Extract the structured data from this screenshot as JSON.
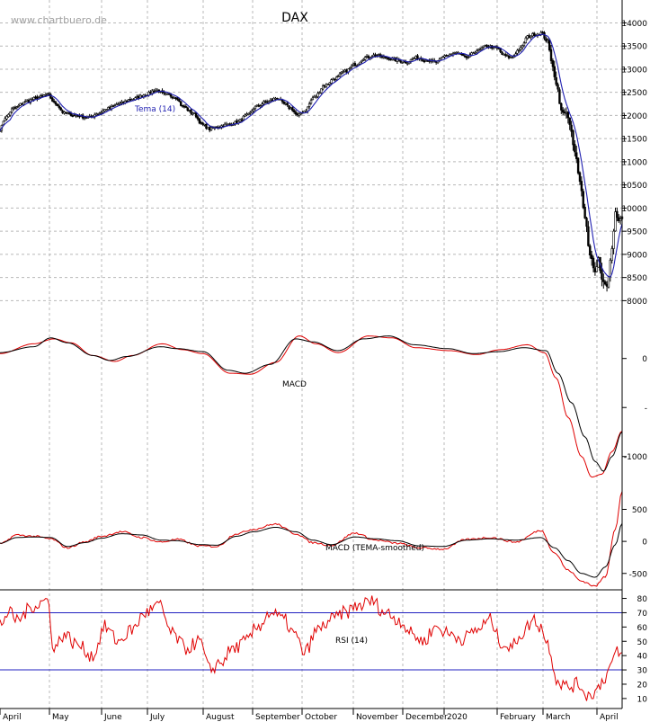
{
  "watermark": "www.chartbuero.de",
  "colors": {
    "price": "#000000",
    "tema": "#1f1fb0",
    "macd": "#000000",
    "signal": "#e00000",
    "rsi": "#e00000",
    "rsi_bands": "#2020c0",
    "grid": "#b8b8b8"
  },
  "chart_data": [
    {
      "type": "candlestick",
      "title": "DAX",
      "series": [
        {
          "name": "Tema (14)",
          "kind": "line"
        }
      ],
      "x_months": [
        "April",
        "May",
        "June",
        "July",
        "August",
        "September",
        "October",
        "November",
        "December",
        "2020",
        "February",
        "March",
        "April"
      ],
      "ylim": [
        7600,
        14300
      ],
      "yticks": [
        8000,
        8500,
        9000,
        9500,
        10000,
        10500,
        11000,
        11500,
        12000,
        12500,
        13000,
        13500,
        14000
      ],
      "close_anchors": [
        [
          0,
          11700
        ],
        [
          3,
          11950
        ],
        [
          8,
          12150
        ],
        [
          15,
          12300
        ],
        [
          22,
          12380
        ],
        [
          28,
          12450
        ],
        [
          33,
          12250
        ],
        [
          38,
          12050
        ],
        [
          45,
          12000
        ],
        [
          52,
          11950
        ],
        [
          58,
          12050
        ],
        [
          64,
          12150
        ],
        [
          70,
          12250
        ],
        [
          78,
          12350
        ],
        [
          86,
          12450
        ],
        [
          92,
          12550
        ],
        [
          98,
          12450
        ],
        [
          104,
          12400
        ],
        [
          108,
          12200
        ],
        [
          114,
          12050
        ],
        [
          120,
          11800
        ],
        [
          124,
          11700
        ],
        [
          128,
          11750
        ],
        [
          134,
          11800
        ],
        [
          140,
          11850
        ],
        [
          146,
          12000
        ],
        [
          152,
          12200
        ],
        [
          158,
          12300
        ],
        [
          164,
          12380
        ],
        [
          168,
          12250
        ],
        [
          172,
          12150
        ],
        [
          176,
          12000
        ],
        [
          180,
          12100
        ],
        [
          186,
          12400
        ],
        [
          192,
          12650
        ],
        [
          198,
          12800
        ],
        [
          204,
          12950
        ],
        [
          210,
          13100
        ],
        [
          216,
          13250
        ],
        [
          222,
          13300
        ],
        [
          228,
          13250
        ],
        [
          234,
          13200
        ],
        [
          240,
          13150
        ],
        [
          246,
          13250
        ],
        [
          252,
          13200
        ],
        [
          258,
          13150
        ],
        [
          264,
          13300
        ],
        [
          270,
          13350
        ],
        [
          276,
          13250
        ],
        [
          282,
          13400
        ],
        [
          288,
          13500
        ],
        [
          294,
          13450
        ],
        [
          298,
          13300
        ],
        [
          302,
          13250
        ],
        [
          308,
          13450
        ],
        [
          312,
          13700
        ],
        [
          316,
          13750
        ],
        [
          320,
          13780
        ],
        [
          324,
          13600
        ],
        [
          326,
          13200
        ],
        [
          329,
          12700
        ],
        [
          332,
          12100
        ],
        [
          335,
          12050
        ],
        [
          337,
          11800
        ],
        [
          340,
          11200
        ],
        [
          343,
          10600
        ],
        [
          346,
          9800
        ],
        [
          349,
          9000
        ],
        [
          352,
          8600
        ],
        [
          354,
          8900
        ],
        [
          356,
          8450
        ],
        [
          359,
          8300
        ],
        [
          362,
          9100
        ],
        [
          364,
          9900
        ],
        [
          366,
          9700
        ],
        [
          368,
          9800
        ]
      ]
    },
    {
      "type": "line",
      "series": [
        {
          "name": "MACD",
          "kind": "line"
        },
        {
          "name": "signal",
          "kind": "line"
        }
      ],
      "ylim": [
        -1250,
        300
      ],
      "yticks": [
        -1000,
        -500,
        0
      ],
      "ytick_labels": [
        "-1000",
        "-",
        "0"
      ],
      "macd_anchors": [
        [
          0,
          60
        ],
        [
          20,
          120
        ],
        [
          30,
          210
        ],
        [
          40,
          160
        ],
        [
          55,
          30
        ],
        [
          65,
          -20
        ],
        [
          75,
          20
        ],
        [
          95,
          120
        ],
        [
          105,
          100
        ],
        [
          120,
          70
        ],
        [
          135,
          -120
        ],
        [
          145,
          -150
        ],
        [
          160,
          -60
        ],
        [
          175,
          200
        ],
        [
          185,
          170
        ],
        [
          200,
          80
        ],
        [
          215,
          200
        ],
        [
          230,
          230
        ],
        [
          245,
          140
        ],
        [
          265,
          100
        ],
        [
          280,
          50
        ],
        [
          295,
          70
        ],
        [
          310,
          110
        ],
        [
          323,
          80
        ],
        [
          330,
          -150
        ],
        [
          338,
          -450
        ],
        [
          346,
          -800
        ],
        [
          352,
          -1050
        ],
        [
          357,
          -1150
        ],
        [
          362,
          -1000
        ],
        [
          368,
          -750
        ]
      ],
      "signal_anchors": [
        [
          0,
          50
        ],
        [
          20,
          150
        ],
        [
          32,
          200
        ],
        [
          42,
          160
        ],
        [
          55,
          30
        ],
        [
          68,
          -30
        ],
        [
          78,
          30
        ],
        [
          96,
          150
        ],
        [
          108,
          90
        ],
        [
          120,
          50
        ],
        [
          136,
          -150
        ],
        [
          148,
          -160
        ],
        [
          163,
          -40
        ],
        [
          177,
          230
        ],
        [
          187,
          150
        ],
        [
          200,
          60
        ],
        [
          218,
          230
        ],
        [
          232,
          210
        ],
        [
          246,
          110
        ],
        [
          266,
          80
        ],
        [
          282,
          40
        ],
        [
          296,
          90
        ],
        [
          312,
          140
        ],
        [
          322,
          60
        ],
        [
          329,
          -200
        ],
        [
          336,
          -600
        ],
        [
          344,
          -1000
        ],
        [
          350,
          -1210
        ],
        [
          356,
          -1180
        ],
        [
          362,
          -950
        ],
        [
          368,
          -740
        ]
      ],
      "label": "MACD"
    },
    {
      "type": "line",
      "series": [
        {
          "name": "MACD (TEMA-smoothed)",
          "kind": "line"
        },
        {
          "name": "signal",
          "kind": "line"
        }
      ],
      "ylim": [
        -700,
        900
      ],
      "yticks": [
        -500,
        0,
        500
      ],
      "ytick_labels": [
        "-500",
        "0",
        "500"
      ],
      "macd_anchors": [
        [
          0,
          -30
        ],
        [
          10,
          60
        ],
        [
          20,
          70
        ],
        [
          30,
          60
        ],
        [
          40,
          -80
        ],
        [
          50,
          -20
        ],
        [
          60,
          50
        ],
        [
          72,
          120
        ],
        [
          84,
          100
        ],
        [
          95,
          20
        ],
        [
          105,
          10
        ],
        [
          118,
          -50
        ],
        [
          128,
          -60
        ],
        [
          140,
          80
        ],
        [
          150,
          150
        ],
        [
          163,
          220
        ],
        [
          175,
          150
        ],
        [
          185,
          20
        ],
        [
          196,
          -50
        ],
        [
          210,
          70
        ],
        [
          222,
          40
        ],
        [
          235,
          10
        ],
        [
          248,
          -70
        ],
        [
          262,
          -80
        ],
        [
          276,
          20
        ],
        [
          290,
          40
        ],
        [
          305,
          20
        ],
        [
          320,
          60
        ],
        [
          328,
          -100
        ],
        [
          336,
          -300
        ],
        [
          344,
          -500
        ],
        [
          352,
          -560
        ],
        [
          358,
          -400
        ],
        [
          364,
          -50
        ],
        [
          368,
          280
        ]
      ],
      "signal_anchors": [
        [
          0,
          -40
        ],
        [
          10,
          100
        ],
        [
          20,
          80
        ],
        [
          30,
          40
        ],
        [
          40,
          -100
        ],
        [
          50,
          -10
        ],
        [
          60,
          80
        ],
        [
          72,
          150
        ],
        [
          84,
          60
        ],
        [
          95,
          -10
        ],
        [
          105,
          30
        ],
        [
          118,
          -70
        ],
        [
          128,
          -80
        ],
        [
          140,
          120
        ],
        [
          150,
          190
        ],
        [
          163,
          270
        ],
        [
          175,
          120
        ],
        [
          185,
          -20
        ],
        [
          196,
          -60
        ],
        [
          210,
          130
        ],
        [
          222,
          20
        ],
        [
          235,
          -30
        ],
        [
          248,
          -100
        ],
        [
          262,
          -120
        ],
        [
          276,
          30
        ],
        [
          290,
          60
        ],
        [
          305,
          -10
        ],
        [
          320,
          170
        ],
        [
          328,
          -180
        ],
        [
          336,
          -450
        ],
        [
          344,
          -620
        ],
        [
          352,
          -700
        ],
        [
          358,
          -550
        ],
        [
          364,
          200
        ],
        [
          368,
          780
        ]
      ],
      "label": "MACD (TEMA-smoothed)"
    },
    {
      "type": "line",
      "series": [
        {
          "name": "RSI (14)",
          "kind": "line"
        }
      ],
      "ylim": [
        3,
        86
      ],
      "yticks": [
        10,
        20,
        30,
        40,
        50,
        60,
        70,
        80
      ],
      "bands": [
        30,
        70
      ],
      "label": "RSI (14)",
      "rsi_anchors": [
        [
          0,
          62
        ],
        [
          5,
          70
        ],
        [
          10,
          65
        ],
        [
          20,
          75
        ],
        [
          28,
          79
        ],
        [
          32,
          45
        ],
        [
          38,
          55
        ],
        [
          45,
          48
        ],
        [
          55,
          40
        ],
        [
          62,
          60
        ],
        [
          70,
          50
        ],
        [
          78,
          58
        ],
        [
          86,
          70
        ],
        [
          94,
          75
        ],
        [
          102,
          55
        ],
        [
          110,
          45
        ],
        [
          118,
          50
        ],
        [
          124,
          30
        ],
        [
          130,
          35
        ],
        [
          138,
          45
        ],
        [
          146,
          50
        ],
        [
          152,
          60
        ],
        [
          160,
          70
        ],
        [
          168,
          65
        ],
        [
          174,
          55
        ],
        [
          180,
          42
        ],
        [
          188,
          58
        ],
        [
          196,
          65
        ],
        [
          204,
          70
        ],
        [
          212,
          75
        ],
        [
          220,
          78
        ],
        [
          228,
          70
        ],
        [
          236,
          65
        ],
        [
          244,
          55
        ],
        [
          250,
          50
        ],
        [
          258,
          60
        ],
        [
          266,
          55
        ],
        [
          274,
          52
        ],
        [
          282,
          58
        ],
        [
          290,
          65
        ],
        [
          296,
          50
        ],
        [
          302,
          45
        ],
        [
          308,
          55
        ],
        [
          316,
          65
        ],
        [
          320,
          60
        ],
        [
          324,
          48
        ],
        [
          330,
          22
        ],
        [
          336,
          18
        ],
        [
          342,
          20
        ],
        [
          348,
          12
        ],
        [
          352,
          15
        ],
        [
          358,
          25
        ],
        [
          362,
          35
        ],
        [
          365,
          42
        ],
        [
          368,
          40
        ]
      ]
    }
  ]
}
